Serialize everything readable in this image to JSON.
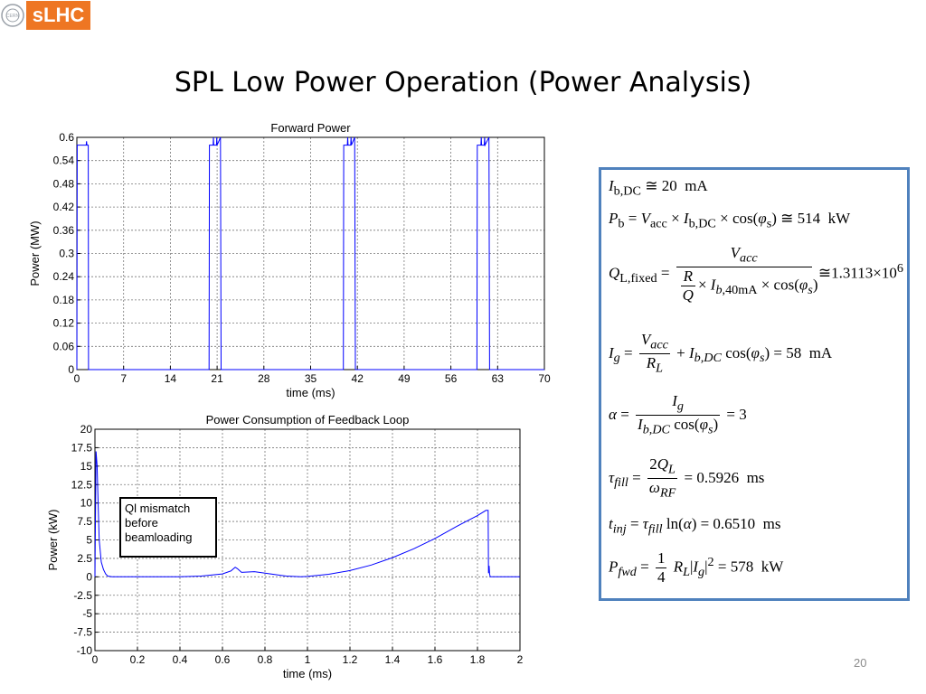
{
  "header": {
    "logo_text": "sLHC",
    "cern_text": "CERN",
    "title": "SPL Low Power Operation (Power Analysis)"
  },
  "page_number": "20",
  "annotation": "Ql mismatch\nbefore\nbeamloading",
  "formulas": {
    "f1": "I_b,DC ≅ 20 mA",
    "f2": "P_b = V_acc × I_b,DC × cos(φ_s) ≅ 514 kW",
    "f3": "Q_L,fixed = V_acc / ((R/Q) × I_b,40mA × cos(φ_s)) ≅ 1.3113×10^6",
    "f4": "I_g = V_acc / R_L + I_b,DC cos(φ_s) = 58 mA",
    "f5": "α = I_g / (I_b,DC cos(φ_s)) = 3",
    "f6": "τ_fill = 2Q_L / ω_RF = 0.5926 ms",
    "f7": "t_inj = τ_fill ln(α) = 0.6510 ms",
    "f8": "P_fwd = 1/4 R_L |I_g|^2 = 578 kW"
  },
  "colors": {
    "line": "#0000ff",
    "accent": "#ee7623",
    "box_border": "#4f81bd"
  },
  "chart_data": [
    {
      "type": "line",
      "title": "Forward Power",
      "xlabel": "time (ms)",
      "ylabel": "Power (MW)",
      "xlim": [
        0,
        70
      ],
      "ylim": [
        0,
        0.6
      ],
      "xticks": [
        0,
        7,
        14,
        21,
        28,
        35,
        42,
        49,
        56,
        63,
        70
      ],
      "yticks": [
        0,
        0.06,
        0.12,
        0.18,
        0.24,
        0.3,
        0.36,
        0.42,
        0.48,
        0.54,
        0.6
      ],
      "ytick_labels": [
        "0",
        "0.06",
        "0.12",
        "0.18",
        "0.24",
        "0.3",
        "0.36",
        "0.42",
        "0.48",
        "0.54",
        "0.6"
      ],
      "grid": true,
      "series": [
        {
          "x": [
            0,
            0.05,
            0.1,
            1.4,
            1.45,
            1.5,
            1.7,
            1.75,
            1.8,
            19.8,
            19.85,
            19.9,
            20.4,
            20.45,
            20.5,
            20.9,
            20.95,
            21.0,
            21.5,
            21.6,
            21.7,
            39.9,
            39.95,
            40.0,
            40.5,
            40.55,
            40.6,
            41.0,
            41.05,
            41.1,
            41.6,
            41.7,
            41.8,
            59.9,
            59.95,
            60.0,
            60.5,
            60.55,
            60.6,
            61.0,
            61.05,
            61.1,
            61.7,
            61.8,
            61.9,
            70
          ],
          "y": [
            0,
            0.58,
            0.58,
            0.58,
            0.59,
            0.58,
            0.58,
            0,
            0,
            0,
            0.58,
            0.58,
            0.58,
            0.6,
            0.58,
            0.58,
            0.6,
            0.58,
            0.6,
            0,
            0,
            0,
            0.58,
            0.58,
            0.58,
            0.6,
            0.58,
            0.58,
            0.6,
            0.58,
            0.6,
            0,
            0,
            0,
            0.58,
            0.58,
            0.58,
            0.6,
            0.58,
            0.58,
            0.6,
            0.58,
            0.6,
            0,
            0,
            0
          ]
        }
      ]
    },
    {
      "type": "line",
      "title": "Power Consumption of Feedback Loop",
      "xlabel": "time (ms)",
      "ylabel": "Power (kW)",
      "xlim": [
        0,
        2
      ],
      "ylim": [
        -10,
        20
      ],
      "xticks": [
        0,
        0.2,
        0.4,
        0.6,
        0.8,
        1,
        1.2,
        1.4,
        1.6,
        1.8,
        2
      ],
      "yticks": [
        -10,
        -7.5,
        -5,
        -2.5,
        0,
        2.5,
        5,
        7.5,
        10,
        12.5,
        15,
        17.5,
        20
      ],
      "ytick_labels": [
        "-10",
        "-7.5",
        "-5",
        "-2.5",
        "0",
        "2.5",
        "5",
        "7.5",
        "10",
        "12.5",
        "15",
        "17.5",
        "20"
      ],
      "grid": true,
      "series": [
        {
          "x": [
            0,
            0.005,
            0.01,
            0.015,
            0.02,
            0.03,
            0.04,
            0.05,
            0.06,
            0.08,
            0.1,
            0.2,
            0.3,
            0.4,
            0.5,
            0.6,
            0.64,
            0.66,
            0.67,
            0.69,
            0.75,
            0.8,
            0.9,
            0.97,
            1.0,
            1.1,
            1.2,
            1.3,
            1.4,
            1.5,
            1.6,
            1.7,
            1.8,
            1.84,
            1.85,
            1.852,
            1.855,
            1.857,
            1.86,
            2
          ],
          "y": [
            0,
            17,
            15,
            10,
            5,
            2,
            1,
            0.4,
            0.1,
            0,
            0,
            0,
            0,
            0,
            0.1,
            0.4,
            0.8,
            1.3,
            1.1,
            0.6,
            0.7,
            0.5,
            0.1,
            0,
            0.05,
            0.35,
            0.85,
            1.6,
            2.6,
            3.8,
            5.2,
            6.8,
            8.3,
            9,
            9,
            0.5,
            1.5,
            0.4,
            0,
            0
          ]
        }
      ]
    }
  ]
}
